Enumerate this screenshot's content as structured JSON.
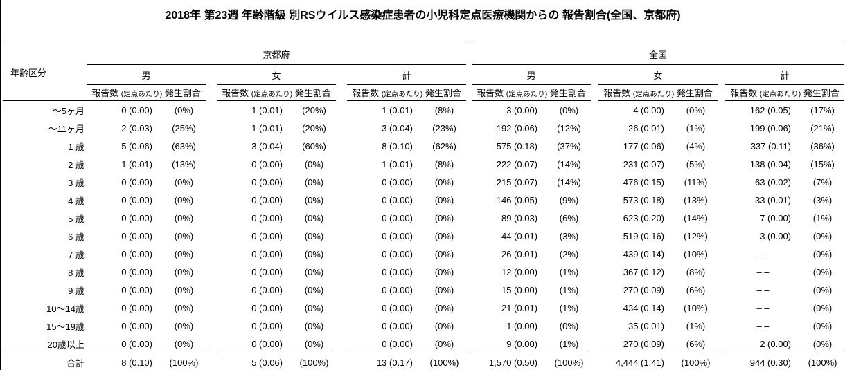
{
  "title": "2018年 第23週 年齢階級 別RSウイルス感染症患者の小児科定点医療機関からの 報告割合(全国、京都府)",
  "table": {
    "age_header": "年齢区分",
    "regions": [
      "京都府",
      "全国"
    ],
    "sex_headers": [
      "男",
      "女",
      "計"
    ],
    "measure": {
      "count": "報告数",
      "per": "(定点あたり)",
      "rate": "発生割合"
    },
    "rows": [
      {
        "age": "〜5ヶ月",
        "values": [
          "0 (0.00)",
          "(0%)",
          "1 (0.01)",
          "(20%)",
          "1 (0.01)",
          "(8%)",
          "3 (0.00)",
          "(0%)",
          "4 (0.00)",
          "(0%)",
          "162 (0.05)",
          "(17%)"
        ]
      },
      {
        "age": "〜11ヶ月",
        "values": [
          "2 (0.03)",
          "(25%)",
          "1 (0.01)",
          "(20%)",
          "3 (0.04)",
          "(23%)",
          "192 (0.06)",
          "(12%)",
          "26 (0.01)",
          "(1%)",
          "199 (0.06)",
          "(21%)"
        ]
      },
      {
        "age": "1 歳",
        "values": [
          "5 (0.06)",
          "(63%)",
          "3 (0.04)",
          "(60%)",
          "8 (0.10)",
          "(62%)",
          "575 (0.18)",
          "(37%)",
          "177 (0.06)",
          "(4%)",
          "337 (0.11)",
          "(36%)"
        ]
      },
      {
        "age": "2 歳",
        "values": [
          "1 (0.01)",
          "(13%)",
          "0 (0.00)",
          "(0%)",
          "1 (0.01)",
          "(8%)",
          "222 (0.07)",
          "(14%)",
          "231 (0.07)",
          "(5%)",
          "138 (0.04)",
          "(15%)"
        ]
      },
      {
        "age": "3 歳",
        "values": [
          "0 (0.00)",
          "(0%)",
          "0 (0.00)",
          "(0%)",
          "0 (0.00)",
          "(0%)",
          "215 (0.07)",
          "(14%)",
          "476 (0.15)",
          "(11%)",
          "63 (0.02)",
          "(7%)"
        ]
      },
      {
        "age": "4 歳",
        "values": [
          "0 (0.00)",
          "(0%)",
          "0 (0.00)",
          "(0%)",
          "0 (0.00)",
          "(0%)",
          "146 (0.05)",
          "(9%)",
          "573 (0.18)",
          "(13%)",
          "33 (0.01)",
          "(3%)"
        ]
      },
      {
        "age": "5 歳",
        "values": [
          "0 (0.00)",
          "(0%)",
          "0 (0.00)",
          "(0%)",
          "0 (0.00)",
          "(0%)",
          "89 (0.03)",
          "(6%)",
          "623 (0.20)",
          "(14%)",
          "7 (0.00)",
          "(1%)"
        ]
      },
      {
        "age": "6 歳",
        "values": [
          "0 (0.00)",
          "(0%)",
          "0 (0.00)",
          "(0%)",
          "0 (0.00)",
          "(0%)",
          "44 (0.01)",
          "(3%)",
          "519 (0.16)",
          "(12%)",
          "3 (0.00)",
          "(0%)"
        ]
      },
      {
        "age": "7 歳",
        "values": [
          "0 (0.00)",
          "(0%)",
          "0 (0.00)",
          "(0%)",
          "0 (0.00)",
          "(0%)",
          "26 (0.01)",
          "(2%)",
          "439 (0.14)",
          "(10%)",
          "– –",
          "(0%)"
        ]
      },
      {
        "age": "8 歳",
        "values": [
          "0 (0.00)",
          "(0%)",
          "0 (0.00)",
          "(0%)",
          "0 (0.00)",
          "(0%)",
          "12 (0.00)",
          "(1%)",
          "367 (0.12)",
          "(8%)",
          "– –",
          "(0%)"
        ]
      },
      {
        "age": "9 歳",
        "values": [
          "0 (0.00)",
          "(0%)",
          "0 (0.00)",
          "(0%)",
          "0 (0.00)",
          "(0%)",
          "15 (0.00)",
          "(1%)",
          "270 (0.09)",
          "(6%)",
          "– –",
          "(0%)"
        ]
      },
      {
        "age": "10〜14歳",
        "values": [
          "0 (0.00)",
          "(0%)",
          "0 (0.00)",
          "(0%)",
          "0 (0.00)",
          "(0%)",
          "21 (0.01)",
          "(1%)",
          "434 (0.14)",
          "(10%)",
          "– –",
          "(0%)"
        ]
      },
      {
        "age": "15〜19歳",
        "values": [
          "0 (0.00)",
          "(0%)",
          "0 (0.00)",
          "(0%)",
          "0 (0.00)",
          "(0%)",
          "1 (0.00)",
          "(0%)",
          "35 (0.01)",
          "(1%)",
          "– –",
          "(0%)"
        ]
      },
      {
        "age": "20歳以上",
        "values": [
          "0 (0.00)",
          "(0%)",
          "0 (0.00)",
          "(0%)",
          "0 (0.00)",
          "(0%)",
          "9 (0.00)",
          "(1%)",
          "270 (0.09)",
          "(6%)",
          "2 (0.00)",
          "(0%)"
        ]
      }
    ],
    "total_row": {
      "age": "合計",
      "values": [
        "8 (0.10)",
        "(100%)",
        "5 (0.06)",
        "(100%)",
        "13 (0.17)",
        "(100%)",
        "1,570 (0.50)",
        "(100%)",
        "4,444 (1.41)",
        "(100%)",
        "944 (0.30)",
        "(100%)"
      ]
    }
  }
}
